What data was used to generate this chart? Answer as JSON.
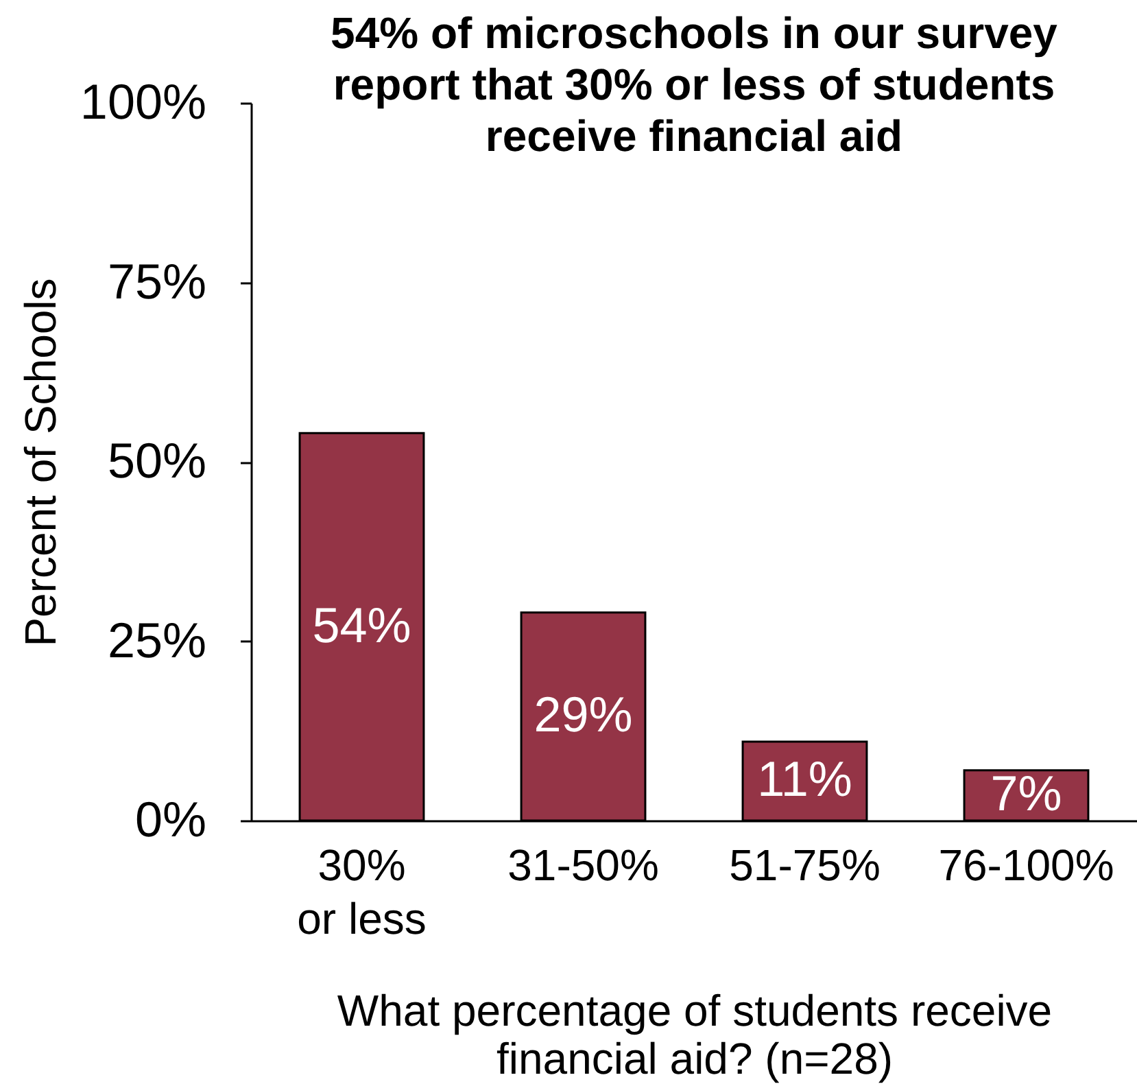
{
  "chart_data": {
    "type": "bar",
    "title": "54% of microschools in our survey report that 30% or less of students receive financial aid",
    "xlabel": "What percentage of students receive financial aid? (n=28)",
    "ylabel": "Percent of Schools",
    "categories": [
      "30% or less",
      "31-50%",
      "51-75%",
      "76-100%"
    ],
    "values": [
      54,
      29,
      11,
      7
    ],
    "color": "#943446",
    "value_labels": [
      "54%",
      "29%",
      "11%",
      "7%"
    ],
    "ylim": [
      0,
      100
    ],
    "yticks": [
      {
        "value": 0,
        "label": "0%"
      },
      {
        "value": 25,
        "label": "25%"
      },
      {
        "value": 50,
        "label": "50%"
      },
      {
        "value": 75,
        "label": "75%"
      },
      {
        "value": 100,
        "label": "100%"
      }
    ],
    "grid": false
  }
}
